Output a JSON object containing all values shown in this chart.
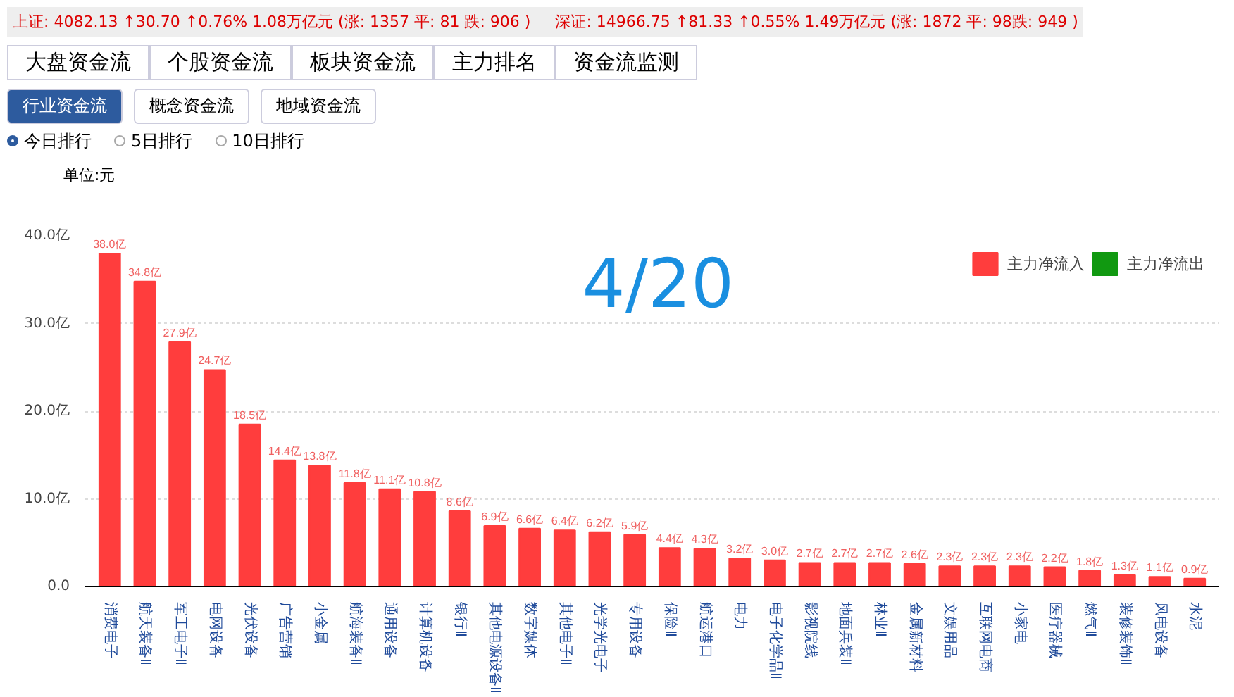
{
  "chart_data": {
    "type": "bar",
    "ylabel": "单位:元",
    "annotations": [
      "上证: 4082.13 ↑30.70 ↑0.76% 1.08万亿元 (涨: 1357 平: 81 跌: 906 )",
      "深证: 14966.75 ↑81.33 ↑0.55% 1.49万亿元 (涨: 1872 平: 98跌: 949 )",
      "大盘资金流",
      "个股资金流",
      "板块资金流",
      "主力排名",
      "资金流监测",
      "行业资金流",
      "概念资金流",
      "地域资金流",
      "今日排行",
      "5日排行",
      "10日排行",
      "4/20"
    ],
    "categories": [
      "消费电子",
      "航天装备Ⅱ",
      "军工电子Ⅱ",
      "电网设备",
      "光伏设备",
      "广告营销",
      "小金属",
      "航海装备Ⅱ",
      "通用设备",
      "计算机设备",
      "银行Ⅱ",
      "其他电源设备Ⅱ",
      "数字媒体",
      "其他电子Ⅱ",
      "光学光电子",
      "专用设备",
      "保险Ⅱ",
      "航运港口",
      "电力",
      "电子化学品Ⅱ",
      "影视院线",
      "地面兵装Ⅱ",
      "林业Ⅱ",
      "金属新材料",
      "文娱用品",
      "互联网电商",
      "小家电",
      "医疗器械",
      "燃气Ⅱ",
      "装修装饰Ⅱ",
      "风电设备",
      "水泥"
    ],
    "series": [
      {
        "name": "主力净流入",
        "color": "#ff3d3d",
        "values": [
          38.0,
          34.8,
          27.9,
          24.7,
          18.5,
          14.4,
          13.8,
          11.8,
          11.1,
          10.8,
          8.6,
          6.9,
          6.6,
          6.4,
          6.2,
          5.9,
          4.4,
          4.3,
          3.2,
          3.0,
          2.7,
          2.7,
          2.7,
          2.6,
          2.3,
          2.3,
          2.3,
          2.2,
          1.8,
          1.3,
          1.1,
          0.9
        ],
        "value_labels": [
          "38.0亿",
          "34.8亿",
          "27.9亿",
          "24.7亿",
          "18.5亿",
          "14.4亿",
          "13.8亿",
          "11.8亿",
          "11.1亿",
          "10.8亿",
          "8.6亿",
          "6.9亿",
          "6.6亿",
          "6.4亿",
          "6.2亿",
          "5.9亿",
          "4.4亿",
          "4.3亿",
          "3.2亿",
          "3.0亿",
          "2.7亿",
          "2.7亿",
          "2.7亿",
          "2.6亿",
          "2.3亿",
          "2.3亿",
          "2.3亿",
          "2.2亿",
          "1.8亿",
          "1.3亿",
          "1.1亿",
          "0.9亿"
        ]
      },
      {
        "name": "主力净流出",
        "color": "#119911",
        "values": [
          null,
          null,
          null,
          null,
          null,
          null,
          null,
          null,
          null,
          null,
          null,
          null,
          null,
          null,
          null,
          null,
          null,
          null,
          null,
          null,
          null,
          null,
          null,
          null,
          null,
          null,
          null,
          null,
          null,
          null,
          null,
          null
        ]
      }
    ],
    "ylim": [
      0,
      40
    ],
    "yticks": [
      {
        "value": 0,
        "label": "0.0"
      },
      {
        "value": 10,
        "label": "10.0亿"
      },
      {
        "value": 20,
        "label": "20.0亿"
      },
      {
        "value": 30,
        "label": "30.0亿"
      },
      {
        "value": 40,
        "label": "40.0亿"
      }
    ],
    "grid": "y",
    "legend": "top right"
  }
}
